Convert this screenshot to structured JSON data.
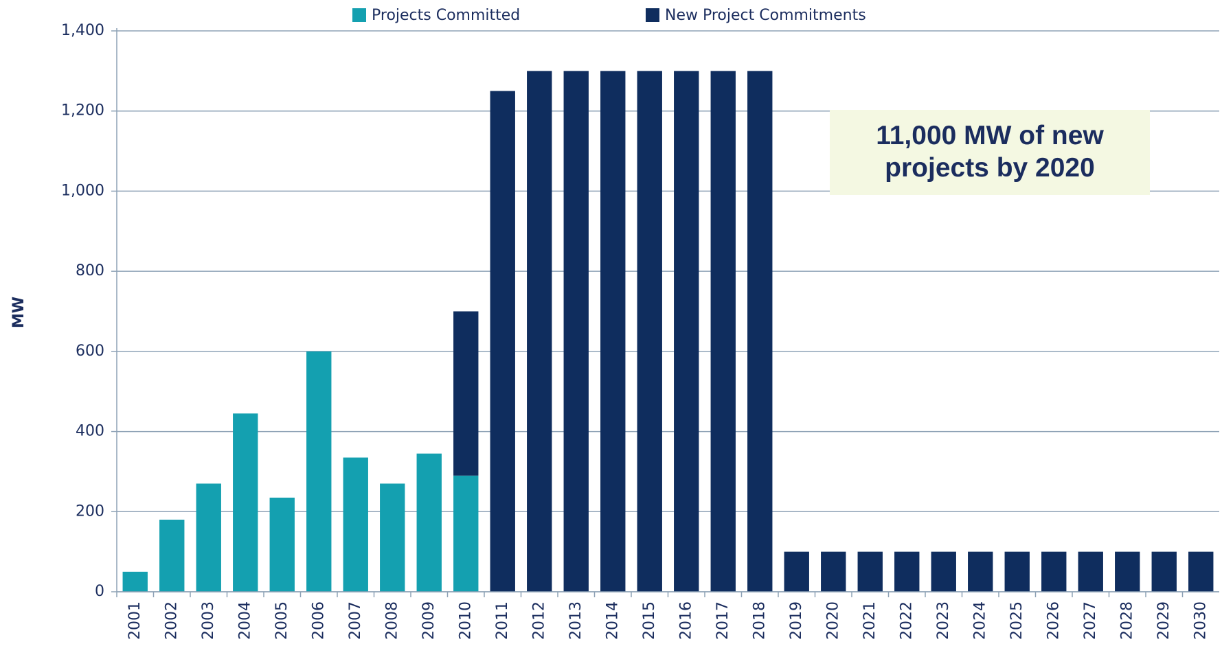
{
  "chart_data": {
    "type": "stacked_bar",
    "y_label": "MW",
    "annotation": "11,000 MW of new projects by 2020",
    "categories": [
      "2001",
      "2002",
      "2003",
      "2004",
      "2005",
      "2006",
      "2007",
      "2008",
      "2009",
      "2010",
      "2011",
      "2012",
      "2013",
      "2014",
      "2015",
      "2016",
      "2017",
      "2018",
      "2019",
      "2020",
      "2021",
      "2022",
      "2023",
      "2024",
      "2025",
      "2026",
      "2027",
      "2028",
      "2029",
      "2030"
    ],
    "series": [
      {
        "name": "Projects Committed",
        "color": "#14a0b0",
        "values": [
          50,
          180,
          270,
          445,
          235,
          600,
          335,
          270,
          345,
          290,
          null,
          null,
          null,
          null,
          null,
          null,
          null,
          null,
          null,
          null,
          null,
          null,
          null,
          null,
          null,
          null,
          null,
          null,
          null,
          null
        ]
      },
      {
        "name": "New Project Commitments",
        "color": "#0f2d5e",
        "values": [
          null,
          null,
          null,
          null,
          null,
          null,
          null,
          null,
          null,
          410,
          1250,
          1300,
          1300,
          1300,
          1300,
          1300,
          1300,
          1300,
          100,
          100,
          100,
          100,
          100,
          100,
          100,
          100,
          100,
          100,
          100,
          100
        ]
      }
    ],
    "ylim": [
      0,
      1400
    ],
    "yticks": [
      0,
      200,
      400,
      600,
      800,
      {
        "value": 1000,
        "label": "1,000"
      },
      {
        "value": 1200,
        "label": "1,200"
      },
      {
        "value": 1400,
        "label": "1,400"
      }
    ],
    "grid": true
  }
}
